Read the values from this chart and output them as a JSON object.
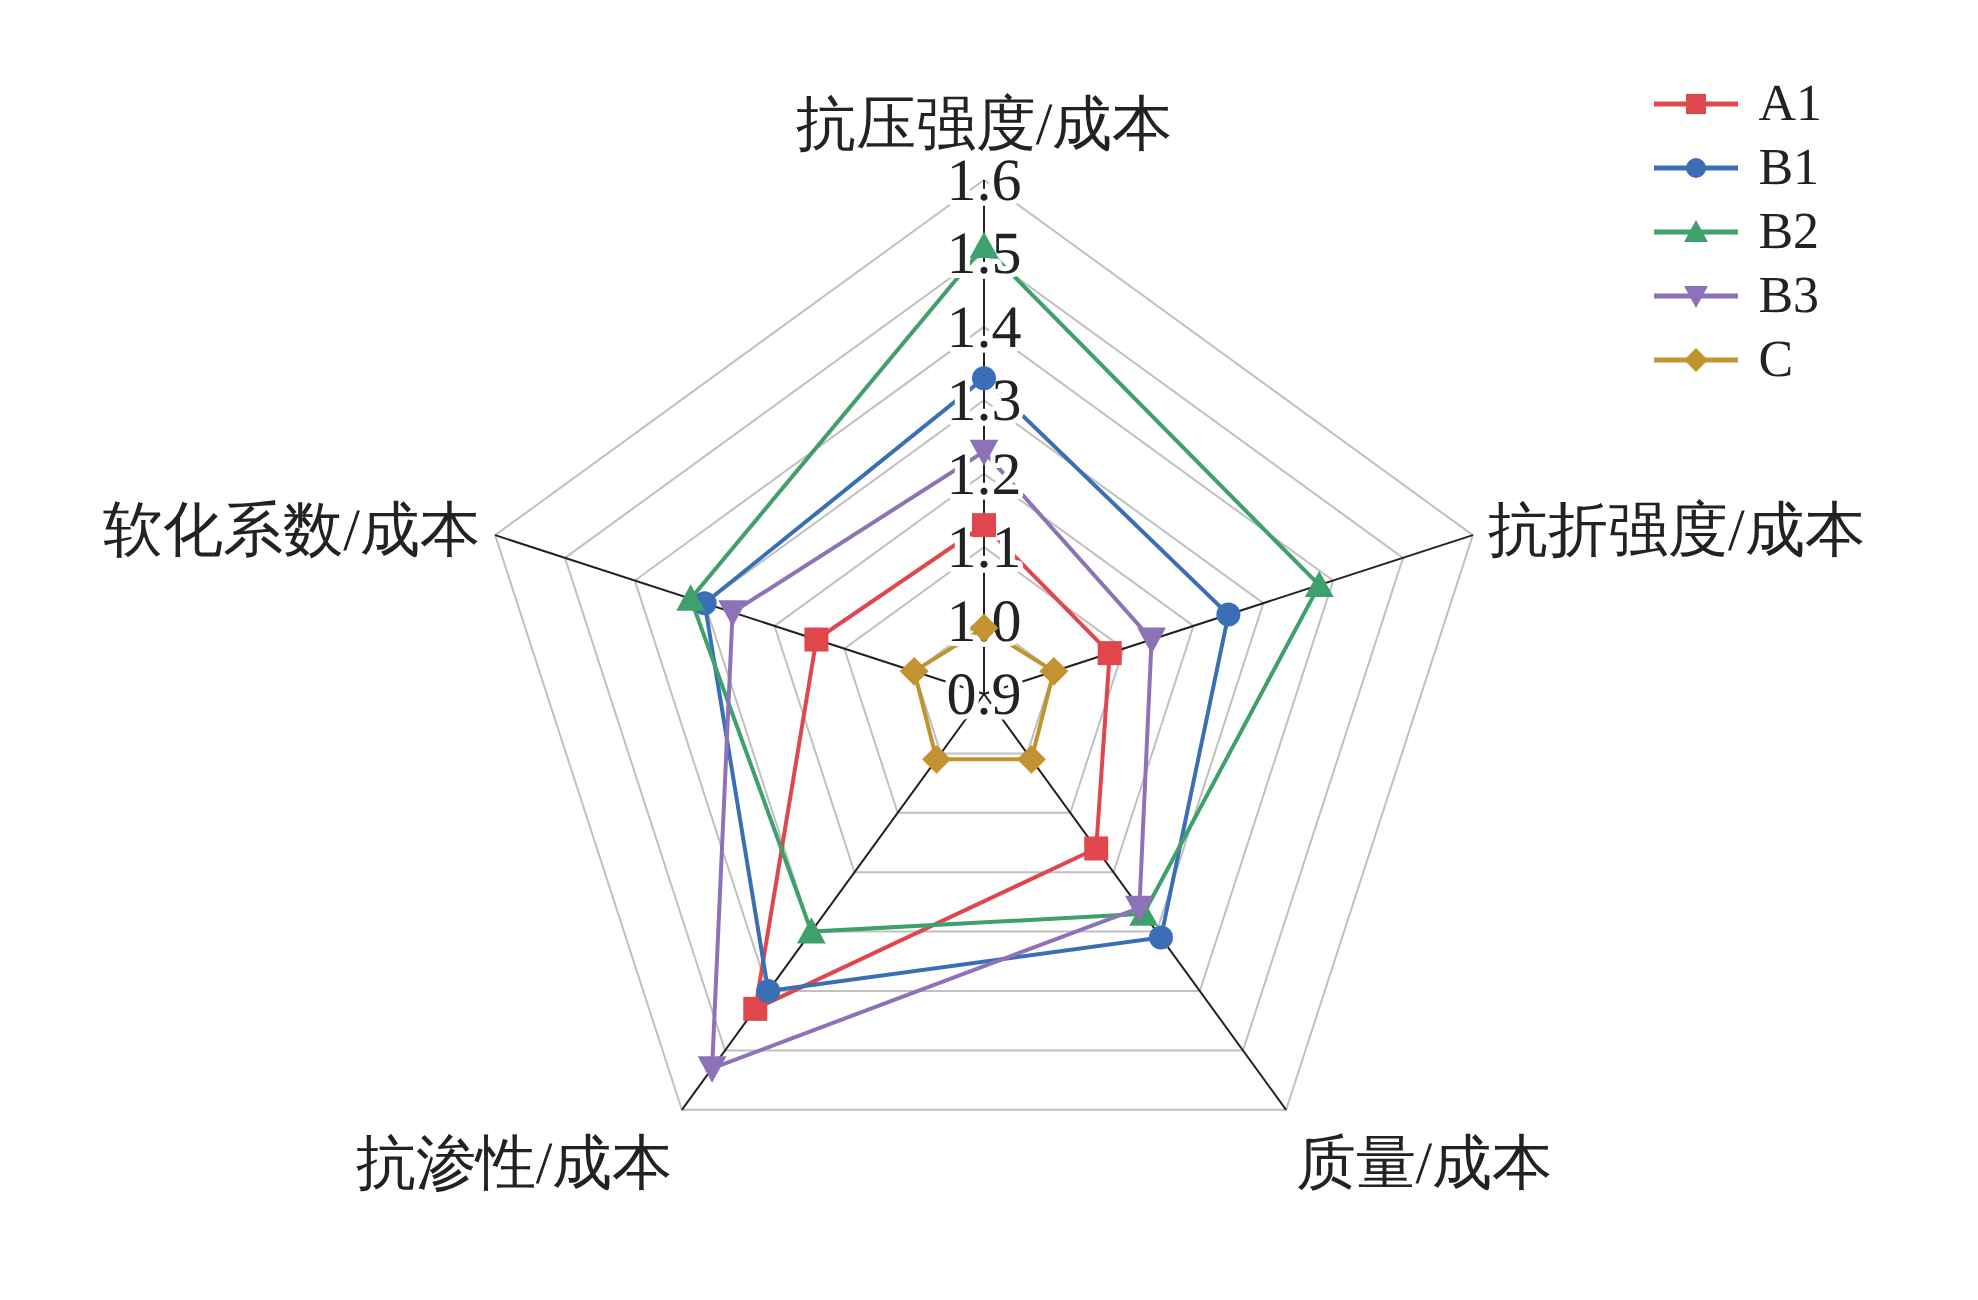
{
  "chart_data": {
    "type": "radar",
    "categories": [
      "抗压强度/成本",
      "抗折强度/成本",
      "质量/成本",
      "抗渗性/成本",
      "软化系数/成本"
    ],
    "series": [
      {
        "name": "A1",
        "color": "#e0474c",
        "marker": "square",
        "values": [
          1.13,
          1.08,
          1.16,
          1.43,
          1.14
        ]
      },
      {
        "name": "B1",
        "color": "#3a6fb5",
        "marker": "circle",
        "values": [
          1.33,
          1.25,
          1.31,
          1.4,
          1.3
        ]
      },
      {
        "name": "B2",
        "color": "#3ea06a",
        "marker": "triangle",
        "values": [
          1.51,
          1.38,
          1.27,
          1.3,
          1.32
        ]
      },
      {
        "name": "B3",
        "color": "#8e72b8",
        "marker": "triangle-down",
        "values": [
          1.23,
          1.14,
          1.26,
          1.53,
          1.26
        ]
      },
      {
        "name": "C",
        "color": "#c39231",
        "marker": "diamond",
        "values": [
          0.99,
          1.0,
          1.01,
          1.01,
          1.0
        ]
      }
    ],
    "ylim": [
      0.9,
      1.6
    ],
    "yticks": [
      0.9,
      {
        "value": 1.0,
        "label": "1.0"
      },
      1.1,
      1.2,
      1.3,
      1.4,
      1.5,
      1.6
    ],
    "grid": true,
    "legend": "top right",
    "line_style": "solid"
  }
}
